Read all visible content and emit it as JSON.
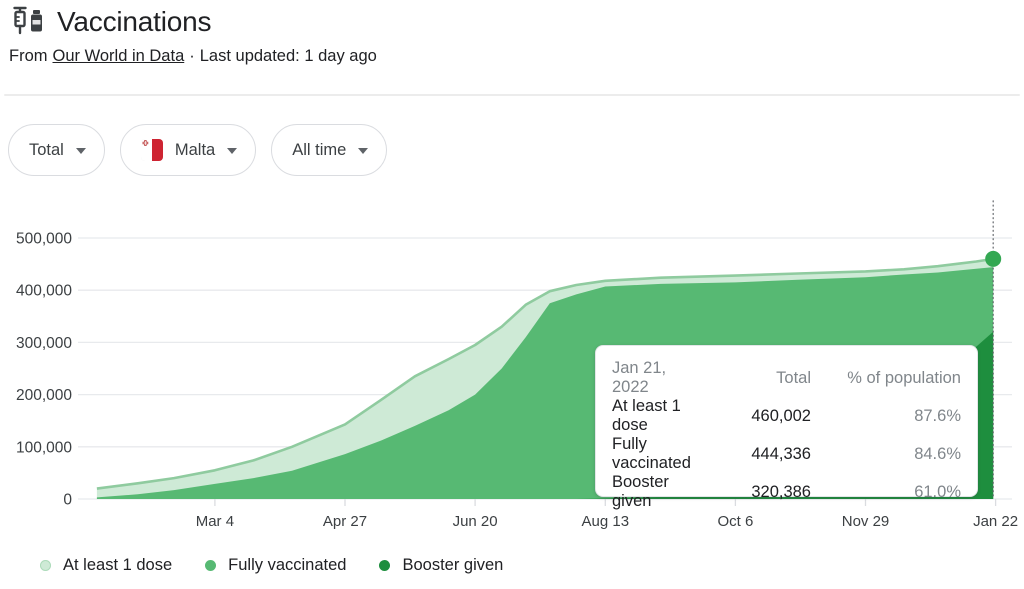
{
  "header": {
    "title": "Vaccinations",
    "source_prefix": "From",
    "source_link": "Our World in Data",
    "separator": "·",
    "updated_text": "Last updated: 1 day ago"
  },
  "filters": [
    {
      "label": "Total"
    },
    {
      "label": "Malta",
      "flag": "malta"
    },
    {
      "label": "All time"
    }
  ],
  "tooltip": {
    "date": "Jan 21, 2022",
    "col_total": "Total",
    "col_pct": "% of population",
    "rows": [
      {
        "label": "At least 1 dose",
        "total": "460,002",
        "pct": "87.6%"
      },
      {
        "label": "Fully vaccinated",
        "total": "444,336",
        "pct": "84.6%"
      },
      {
        "label": "Booster given",
        "total": "320,386",
        "pct": "61.0%"
      }
    ]
  },
  "legend": [
    {
      "label": "At least 1 dose",
      "color": "#ceead6",
      "rim": "#aedbbb"
    },
    {
      "label": "Fully vaccinated",
      "color": "#57b973"
    },
    {
      "label": "Booster given",
      "color": "#1e8e3e"
    }
  ],
  "flag_colors": {
    "malta_red": "#ce2432",
    "malta_white": "#ffffff"
  },
  "chart_data": {
    "type": "area",
    "title": "Vaccinations",
    "xlabel": "",
    "ylabel": "",
    "grid": true,
    "legend_position": "bottom",
    "x_domain": [
      "2021-01-07",
      "2022-01-23"
    ],
    "ylim": [
      0,
      570000
    ],
    "x": [
      "2021-01-14",
      "2021-01-31",
      "2021-02-15",
      "2021-03-04",
      "2021-03-20",
      "2021-04-05",
      "2021-04-27",
      "2021-05-12",
      "2021-05-26",
      "2021-06-09",
      "2021-06-20",
      "2021-07-01",
      "2021-07-11",
      "2021-07-21",
      "2021-08-01",
      "2021-08-13",
      "2021-09-05",
      "2021-10-06",
      "2021-11-01",
      "2021-11-29",
      "2021-12-15",
      "2021-12-29",
      "2022-01-07",
      "2022-01-14",
      "2022-01-21"
    ],
    "series": [
      {
        "name": "At least 1 dose",
        "color": "#ceead6",
        "stroke": "#8fcb9f",
        "values": [
          20000,
          30000,
          40000,
          55000,
          74000,
          100000,
          143000,
          190000,
          235000,
          268000,
          295000,
          330000,
          372000,
          398000,
          410000,
          418000,
          424000,
          428000,
          432000,
          436000,
          440000,
          446000,
          451000,
          455000,
          460002
        ]
      },
      {
        "name": "Fully vaccinated",
        "color": "#57b973",
        "values": [
          3000,
          9000,
          17000,
          29000,
          40000,
          54000,
          86000,
          112000,
          140000,
          170000,
          200000,
          250000,
          310000,
          375000,
          392000,
          407000,
          412000,
          415000,
          420000,
          425000,
          430000,
          434000,
          438000,
          441000,
          444336
        ]
      },
      {
        "name": "Booster given",
        "color": "#1e8e3e",
        "values": [
          0,
          0,
          0,
          0,
          0,
          0,
          0,
          0,
          0,
          0,
          0,
          0,
          0,
          0,
          0,
          1000,
          4000,
          12000,
          35000,
          80000,
          140000,
          210000,
          258000,
          292000,
          320386
        ]
      }
    ],
    "yticks": [
      {
        "v": 0,
        "label": "0"
      },
      {
        "v": 100000,
        "label": "100,000"
      },
      {
        "v": 200000,
        "label": "200,000"
      },
      {
        "v": 300000,
        "label": "300,000"
      },
      {
        "v": 400000,
        "label": "400,000"
      },
      {
        "v": 500000,
        "label": "500,000"
      }
    ],
    "xticks": [
      {
        "date": "2021-03-04",
        "label": "Mar 4"
      },
      {
        "date": "2021-04-27",
        "label": "Apr 27"
      },
      {
        "date": "2021-06-20",
        "label": "Jun 20"
      },
      {
        "date": "2021-08-13",
        "label": "Aug 13"
      },
      {
        "date": "2021-10-06",
        "label": "Oct 6"
      },
      {
        "date": "2021-11-29",
        "label": "Nov 29"
      },
      {
        "date": "2022-01-22",
        "label": "Jan 22"
      }
    ],
    "marker": {
      "date": "2022-01-21",
      "value": 460002,
      "series": "At least 1 dose",
      "dot_color": "#34a853",
      "line_color": "#5f6368"
    }
  }
}
